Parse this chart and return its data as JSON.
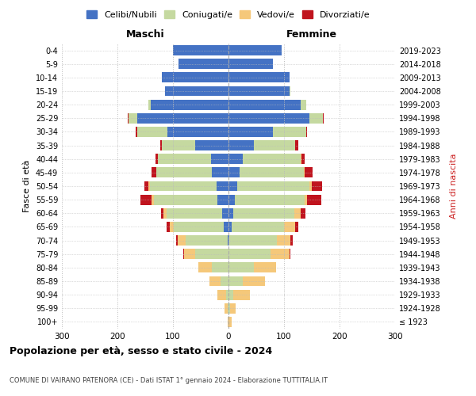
{
  "age_groups": [
    "100+",
    "95-99",
    "90-94",
    "85-89",
    "80-84",
    "75-79",
    "70-74",
    "65-69",
    "60-64",
    "55-59",
    "50-54",
    "45-49",
    "40-44",
    "35-39",
    "30-34",
    "25-29",
    "20-24",
    "15-19",
    "10-14",
    "5-9",
    "0-4"
  ],
  "birth_years": [
    "≤ 1923",
    "1924-1928",
    "1929-1933",
    "1934-1938",
    "1939-1943",
    "1944-1948",
    "1949-1953",
    "1954-1958",
    "1959-1963",
    "1964-1968",
    "1969-1973",
    "1974-1978",
    "1979-1983",
    "1984-1988",
    "1989-1993",
    "1994-1998",
    "1999-2003",
    "2004-2008",
    "2009-2013",
    "2014-2018",
    "2019-2023"
  ],
  "colors": {
    "celibe": "#4472c4",
    "coniugato": "#c5d9a0",
    "vedovo": "#f5c87a",
    "divorziato": "#c0141e"
  },
  "males": {
    "celibe": [
      0,
      0,
      0,
      0,
      0,
      0,
      2,
      8,
      12,
      20,
      22,
      30,
      32,
      60,
      110,
      165,
      140,
      115,
      120,
      90,
      100
    ],
    "coniugato": [
      0,
      2,
      5,
      15,
      30,
      60,
      75,
      90,
      100,
      115,
      120,
      100,
      95,
      60,
      55,
      15,
      5,
      0,
      0,
      0,
      0
    ],
    "vedovo": [
      2,
      5,
      15,
      20,
      25,
      20,
      15,
      8,
      5,
      3,
      2,
      0,
      0,
      0,
      0,
      0,
      0,
      0,
      0,
      0,
      0
    ],
    "divorziato": [
      0,
      0,
      0,
      0,
      0,
      2,
      3,
      5,
      5,
      20,
      8,
      8,
      5,
      3,
      2,
      2,
      0,
      0,
      0,
      0,
      0
    ]
  },
  "females": {
    "nubile": [
      0,
      0,
      0,
      0,
      0,
      0,
      2,
      5,
      8,
      12,
      15,
      20,
      25,
      45,
      80,
      145,
      130,
      110,
      110,
      80,
      95
    ],
    "coniugata": [
      0,
      3,
      8,
      25,
      45,
      75,
      85,
      95,
      110,
      125,
      130,
      115,
      105,
      75,
      60,
      25,
      10,
      2,
      0,
      0,
      0
    ],
    "vedova": [
      5,
      10,
      30,
      40,
      40,
      35,
      25,
      20,
      12,
      5,
      5,
      2,
      2,
      0,
      0,
      0,
      0,
      0,
      0,
      0,
      0
    ],
    "divorziata": [
      0,
      0,
      0,
      0,
      0,
      2,
      3,
      5,
      8,
      25,
      18,
      15,
      5,
      5,
      2,
      2,
      0,
      0,
      0,
      0,
      0
    ]
  },
  "xlim": 300,
  "title1": "Popolazione per età, sesso e stato civile - 2024",
  "title2": "COMUNE DI VAIRANO PATENORA (CE) - Dati ISTAT 1° gennaio 2024 - Elaborazione TUTTITALIA.IT",
  "xlabel_left": "Maschi",
  "xlabel_right": "Femmine",
  "ylabel_left": "Fasce di età",
  "ylabel_right": "Anni di nascita",
  "legend_labels": [
    "Celibi/Nubili",
    "Coniugati/e",
    "Vedovi/e",
    "Divorziati/e"
  ]
}
